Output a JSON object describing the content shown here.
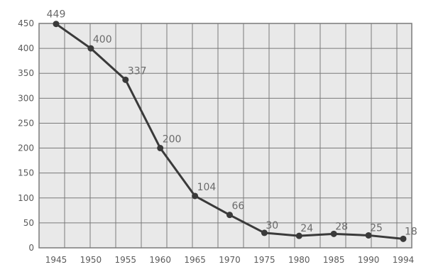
{
  "chart_data": {
    "type": "line",
    "title": "",
    "xlabel": "",
    "ylabel": "",
    "x": [
      "1945",
      "1950",
      "1955",
      "1960",
      "1965",
      "1970",
      "1975",
      "1980",
      "1985",
      "1990",
      "1994"
    ],
    "series": [
      {
        "values": [
          449,
          400,
          337,
          200,
          104,
          66,
          30,
          24,
          28,
          25,
          18
        ],
        "data_labels": [
          "449",
          "400",
          "337",
          "200",
          "104",
          "66",
          "30",
          "24",
          "28",
          "25",
          "18"
        ]
      }
    ],
    "y_ticks": [
      "0",
      "50",
      "100",
      "150",
      "200",
      "250",
      "300",
      "350",
      "400",
      "450"
    ],
    "ylim": [
      0,
      450
    ],
    "grid": true,
    "legend": "none",
    "colors": {
      "line": "#3a3a3a",
      "marker": "#3a3a3a",
      "grid": "#7a7a7a",
      "plot_background": "#e9e9e9"
    }
  }
}
